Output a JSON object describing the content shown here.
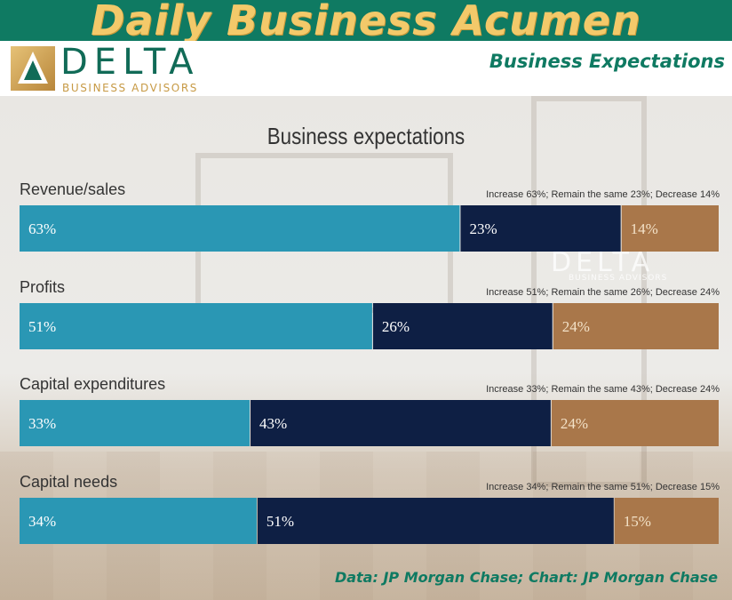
{
  "header": {
    "headline": "Daily Business Acumen",
    "brand_name": "DELTA",
    "brand_sub": "BUSINESS ADVISORS",
    "section_title": "Business Expectations"
  },
  "watermark": {
    "name": "DELTA",
    "sub": "BUSINESS ADVISORS"
  },
  "colors": {
    "header_green": "#0f7a62",
    "headline_gold": "#f3c96a",
    "increase": "#2a97b4",
    "remain": "#0e1f44",
    "decrease": "#a9774a"
  },
  "chart_data": {
    "type": "bar",
    "orientation": "horizontal",
    "stacked": true,
    "title": "Business expectations",
    "xlim": [
      0,
      100
    ],
    "series_names": [
      "Increase",
      "Remain the same",
      "Decrease"
    ],
    "categories": [
      "Revenue/sales",
      "Profits",
      "Capital expenditures",
      "Capital needs"
    ],
    "rows": [
      {
        "category": "Revenue/sales",
        "values": [
          63,
          23,
          14
        ],
        "labels": [
          "63%",
          "23%",
          "14%"
        ],
        "note": "Increase 63%; Remain the same 23%; Decrease 14%"
      },
      {
        "category": "Profits",
        "values": [
          51,
          26,
          24
        ],
        "labels": [
          "51%",
          "26%",
          "24%"
        ],
        "note": "Increase 51%; Remain the same 26%; Decrease 24%"
      },
      {
        "category": "Capital expenditures",
        "values": [
          33,
          43,
          24
        ],
        "labels": [
          "33%",
          "43%",
          "24%"
        ],
        "note": "Increase 33%; Remain the same 43%; Decrease 24%"
      },
      {
        "category": "Capital needs",
        "values": [
          34,
          51,
          15
        ],
        "labels": [
          "34%",
          "51%",
          "15%"
        ],
        "note": "Increase 34%; Remain the same 51%; Decrease 15%"
      }
    ]
  },
  "footer": {
    "source": "Data: JP Morgan Chase; Chart: JP Morgan Chase"
  }
}
